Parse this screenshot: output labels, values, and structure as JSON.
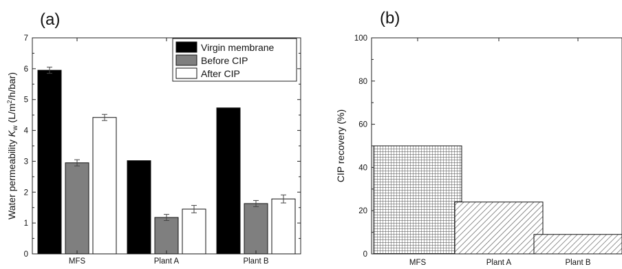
{
  "chart_data": [
    {
      "panel_label": "(a)",
      "type": "bar",
      "categories": [
        "MFS",
        "Plant A",
        "Plant B"
      ],
      "series": [
        {
          "name": "Virgin membrane",
          "values": [
            5.95,
            3.02,
            4.73
          ],
          "errors": [
            0.1,
            0,
            0
          ],
          "color": "#000000"
        },
        {
          "name": "Before CIP",
          "values": [
            2.95,
            1.18,
            1.63
          ],
          "errors": [
            0.1,
            0.1,
            0.1
          ],
          "color": "#7f7f7f"
        },
        {
          "name": "After CIP",
          "values": [
            4.42,
            1.45,
            1.78
          ],
          "errors": [
            0.1,
            0.12,
            0.13
          ],
          "color": "#ffffff"
        }
      ],
      "ylabel": {
        "base": "Water permeability ",
        "italic": "K",
        "sub": "w",
        "unit_pre": " (L/m",
        "sup": "2",
        "unit_post": "/h/bar)"
      },
      "ylim": [
        0,
        7
      ],
      "yticks": [
        "0",
        "1",
        "2",
        "3",
        "4",
        "5",
        "6",
        "7"
      ],
      "legend_position": "top-right",
      "grid": false
    },
    {
      "panel_label": "(b)",
      "type": "bar",
      "categories": [
        "MFS",
        "Plant A",
        "Plant B"
      ],
      "values": [
        50,
        24,
        9
      ],
      "patterns": [
        "crosshatch",
        "diagonal",
        "diagonal"
      ],
      "ylabel": "CIP recovery (%)",
      "ylim": [
        0,
        100
      ],
      "yticks": [
        "0",
        "20",
        "40",
        "60",
        "80",
        "100"
      ],
      "grid": false
    }
  ]
}
